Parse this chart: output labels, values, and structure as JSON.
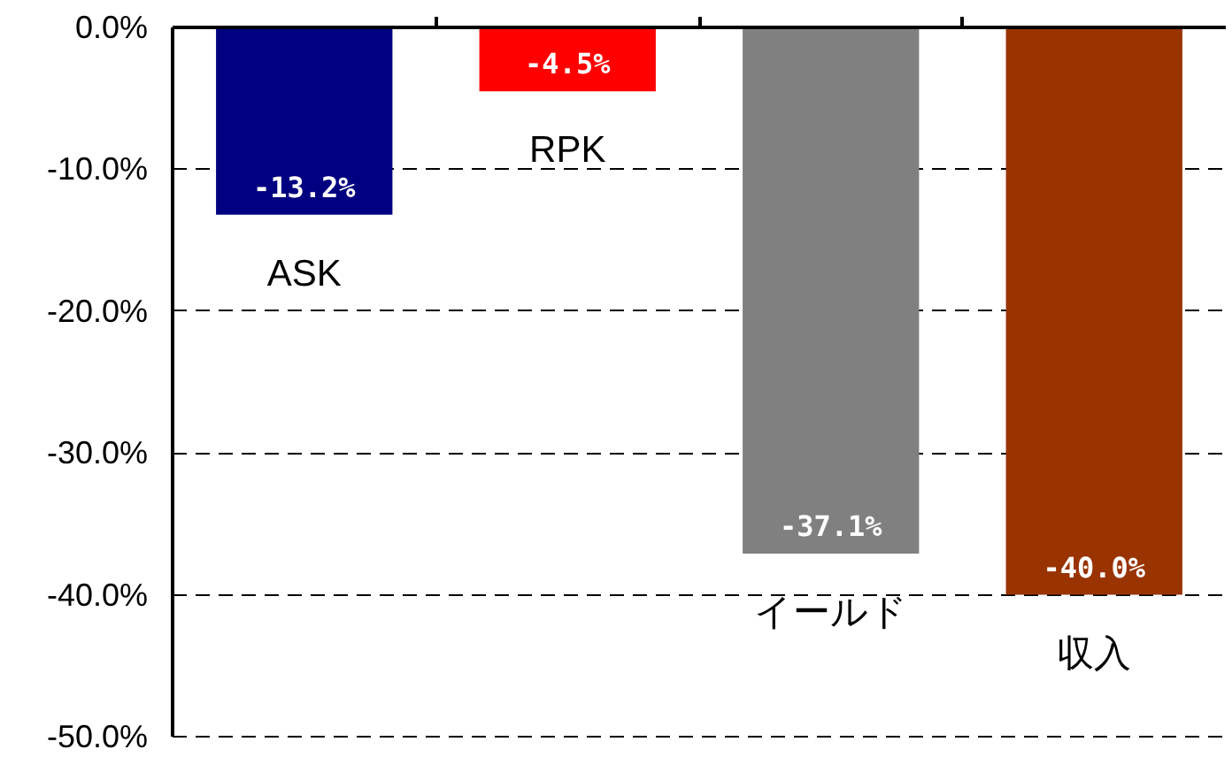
{
  "chart_data": {
    "type": "bar",
    "categories": [
      "ASK",
      "RPK",
      "イールド",
      "収入"
    ],
    "values": [
      -13.2,
      -4.5,
      -37.1,
      -40.0
    ],
    "colors": [
      "#000080",
      "#ff0000",
      "#808080",
      "#993300"
    ],
    "value_labels": [
      "-13.2%",
      "-4.5%",
      "-37.1%",
      "-40.0%"
    ],
    "ylim": [
      -50,
      0
    ],
    "yticks": [
      {
        "value": 0,
        "label": "0.0%"
      },
      {
        "value": -10,
        "label": "-10.0%"
      },
      {
        "value": -20,
        "label": "-20.0%"
      },
      {
        "value": -30,
        "label": "-30.0%"
      },
      {
        "value": -40,
        "label": "-40.0%"
      },
      {
        "value": -50,
        "label": "-50.0%"
      }
    ],
    "grid": "y"
  }
}
